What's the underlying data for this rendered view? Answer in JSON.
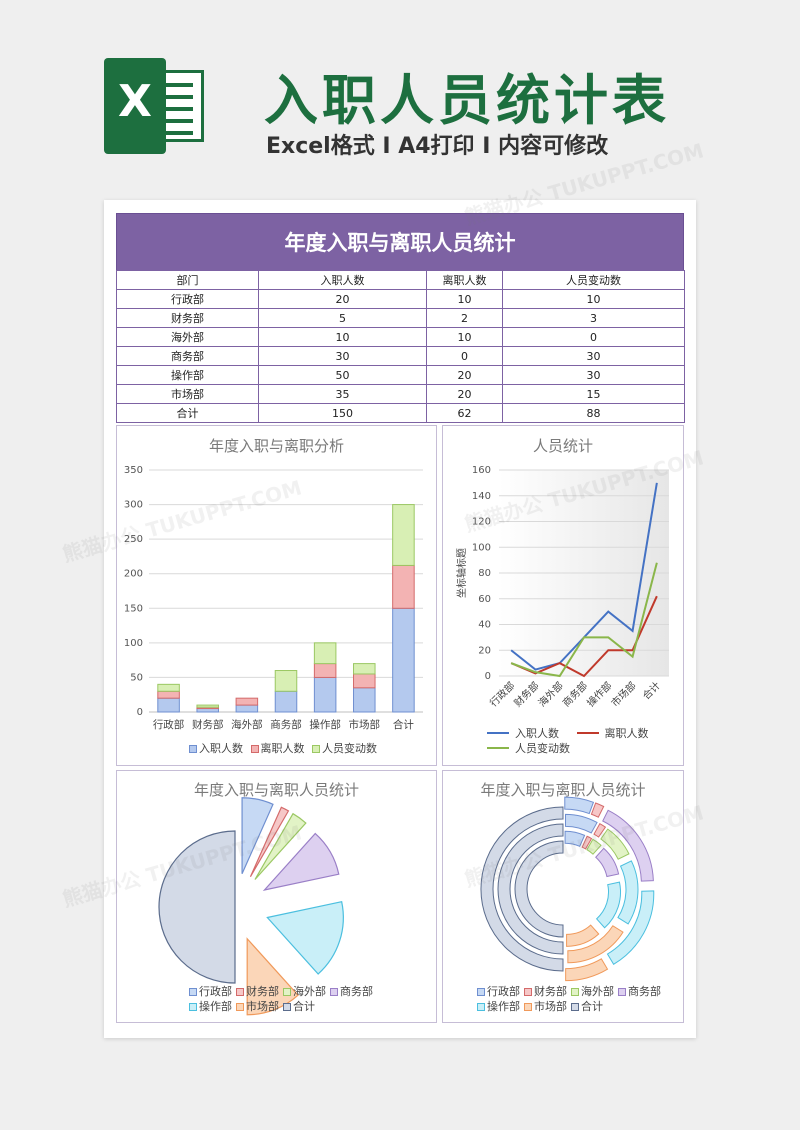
{
  "header": {
    "title": "入职人员统计表",
    "subtitle": "Excel格式 Ⅰ A4打印 Ⅰ 内容可修改",
    "logo_letter": "X",
    "logo_icon": "excel-logo-icon"
  },
  "watermark": "熊猫办公 TUKUPPT.COM",
  "table": {
    "title": "年度入职与离职人员统计",
    "headers": [
      "部门",
      "入职人数",
      "离职人数",
      "人员变动数"
    ],
    "rows": [
      [
        "行政部",
        "20",
        "10",
        "10"
      ],
      [
        "财务部",
        "5",
        "2",
        "3"
      ],
      [
        "海外部",
        "10",
        "10",
        "0"
      ],
      [
        "商务部",
        "30",
        "0",
        "30"
      ],
      [
        "操作部",
        "50",
        "20",
        "30"
      ],
      [
        "市场部",
        "35",
        "20",
        "15"
      ],
      [
        "合计",
        "150",
        "62",
        "88"
      ]
    ]
  },
  "colors": {
    "brand_green": "#1d6f3f",
    "table_purple": "#7d62a3",
    "hire_fill": "#b4c9ee",
    "hire_stroke": "#6f8fd0",
    "leave_fill": "#f3b3b3",
    "leave_stroke": "#d46a6a",
    "change_fill": "#d8efb4",
    "change_stroke": "#9bc863",
    "line_hire": "#4472c4",
    "line_leave": "#c0392b",
    "line_change": "#8ab64a"
  },
  "chart_data": [
    {
      "type": "bar",
      "stacked": true,
      "title": "年度入职与离职分析",
      "categories": [
        "行政部",
        "财务部",
        "海外部",
        "商务部",
        "操作部",
        "市场部",
        "合计"
      ],
      "series": [
        {
          "name": "入职人数",
          "values": [
            20,
            5,
            10,
            30,
            50,
            35,
            150
          ]
        },
        {
          "name": "离职人数",
          "values": [
            10,
            2,
            10,
            0,
            20,
            20,
            62
          ]
        },
        {
          "name": "人员变动数",
          "values": [
            10,
            3,
            0,
            30,
            30,
            15,
            88
          ]
        }
      ],
      "yticks": [
        0,
        50,
        100,
        150,
        200,
        250,
        300,
        350
      ],
      "ylim": [
        0,
        350
      ],
      "grid": true,
      "legend": "bottom"
    },
    {
      "type": "line",
      "title": "人员统计",
      "ylabel": "坐标轴标题",
      "categories": [
        "行政部",
        "财务部",
        "海外部",
        "商务部",
        "操作部",
        "市场部",
        "合计"
      ],
      "series": [
        {
          "name": "入职人数",
          "values": [
            20,
            5,
            10,
            30,
            50,
            35,
            150
          ]
        },
        {
          "name": "离职人数",
          "values": [
            10,
            2,
            10,
            0,
            20,
            20,
            62
          ]
        },
        {
          "name": "人员变动数",
          "values": [
            10,
            3,
            0,
            30,
            30,
            15,
            88
          ]
        }
      ],
      "yticks": [
        0,
        20,
        40,
        60,
        80,
        100,
        120,
        140,
        160
      ],
      "ylim": [
        0,
        160
      ],
      "grid": true,
      "legend": "bottom"
    },
    {
      "type": "pie",
      "exploded": true,
      "title": "年度入职与离职人员统计",
      "categories": [
        "行政部",
        "财务部",
        "海外部",
        "商务部",
        "操作部",
        "市场部",
        "合计"
      ],
      "values": [
        20,
        5,
        10,
        30,
        50,
        35,
        150
      ],
      "legend": "bottom"
    },
    {
      "type": "pie",
      "variant": "doughnut",
      "title": "年度入职与离职人员统计",
      "categories": [
        "行政部",
        "财务部",
        "海外部",
        "商务部",
        "操作部",
        "市场部",
        "合计"
      ],
      "series": [
        {
          "values": [
            20,
            5,
            10,
            30,
            50,
            35,
            150
          ]
        },
        {
          "values": [
            10,
            2,
            10,
            0,
            20,
            20,
            62
          ]
        },
        {
          "values": [
            10,
            3,
            0,
            30,
            30,
            15,
            88
          ]
        }
      ],
      "legend": "bottom"
    }
  ],
  "pie_palette": [
    {
      "fill": "#c6d9f4",
      "stroke": "#6f8fd0"
    },
    {
      "fill": "#f6c7c7",
      "stroke": "#d46a6a"
    },
    {
      "fill": "#e2f3c6",
      "stroke": "#9bc863"
    },
    {
      "fill": "#ddd0f0",
      "stroke": "#9a7fc7"
    },
    {
      "fill": "#c9eff8",
      "stroke": "#4bbfdf"
    },
    {
      "fill": "#fbd6b8",
      "stroke": "#f0995a"
    },
    {
      "fill": "#d3dae7",
      "stroke": "#5b6c8c"
    }
  ]
}
